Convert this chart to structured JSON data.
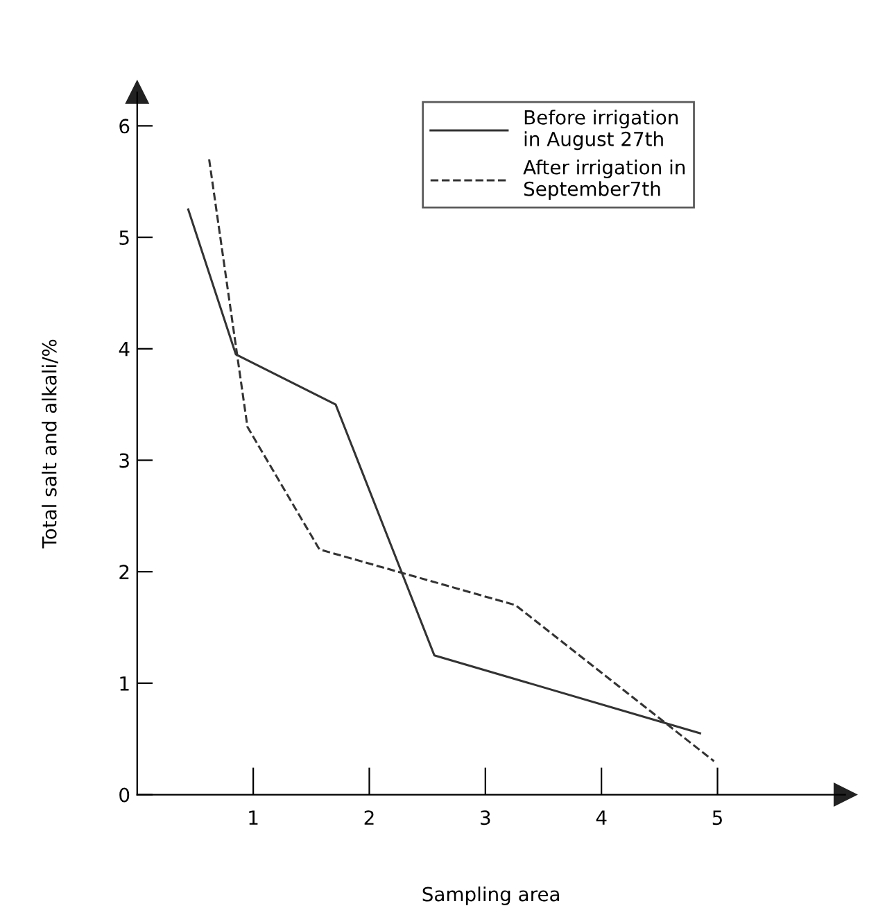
{
  "chart_data": {
    "type": "line",
    "xlabel": "Sampling area",
    "ylabel": "Total salt and alkali/%",
    "xlim": [
      0,
      6.1
    ],
    "ylim": [
      0,
      6.3
    ],
    "xticks": [
      1,
      2,
      3,
      4,
      5
    ],
    "yticks": [
      0,
      1,
      2,
      3,
      4,
      5,
      6
    ],
    "grid": false,
    "legend": "top right",
    "marker": "none",
    "series": [
      {
        "name": "Before irrigation\nin August 27th",
        "color": "#333333",
        "line_style": "solid",
        "x": [
          0.44,
          0.85,
          1.71,
          2.56,
          4.85
        ],
        "values": [
          5.25,
          3.95,
          3.5,
          1.25,
          0.55
        ]
      },
      {
        "name": "After irrigation in\nSeptember7th",
        "color": "#333333",
        "line_style": "dashed",
        "x": [
          0.62,
          0.95,
          1.57,
          3.26,
          4.97
        ],
        "values": [
          5.7,
          3.3,
          2.2,
          1.7,
          0.3
        ]
      }
    ]
  }
}
